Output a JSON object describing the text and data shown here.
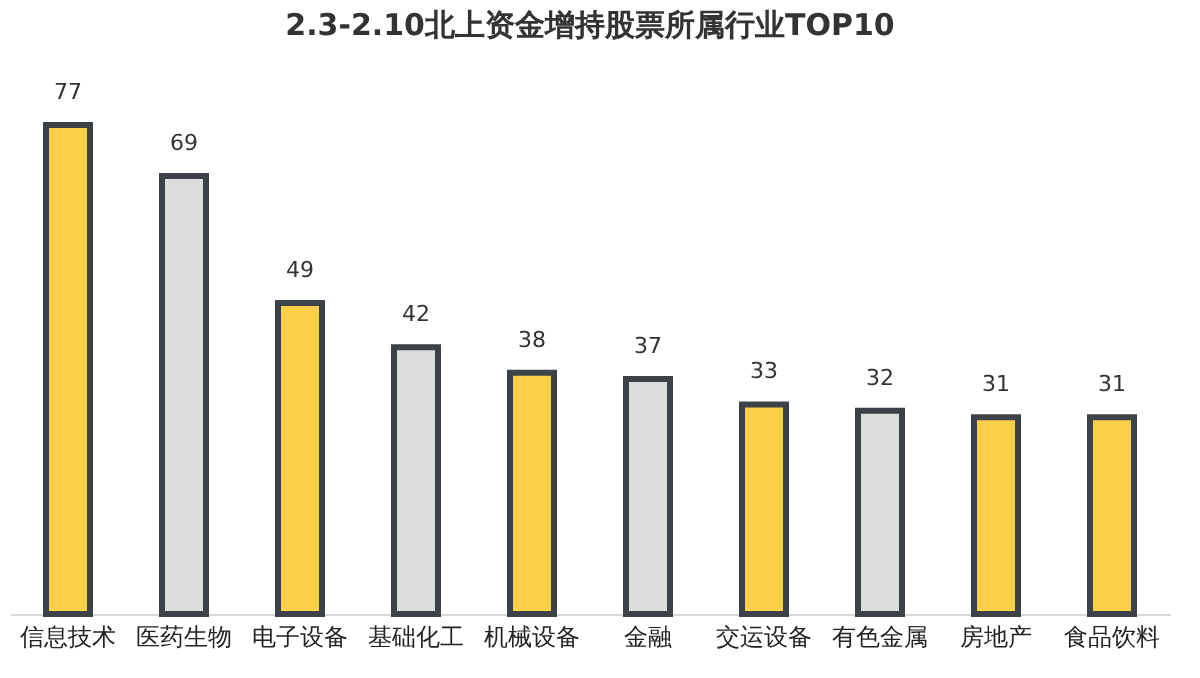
{
  "chart_data": {
    "type": "bar",
    "title": "2.3-2.10北上资金增持股票所属行业TOP10",
    "categories": [
      "信息技术",
      "医药生物",
      "电子设备",
      "基础化工",
      "机械设备",
      "金融",
      "交运设备",
      "有色金属",
      "房地产",
      "食品饮料"
    ],
    "values": [
      77,
      69,
      49,
      42,
      38,
      37,
      33,
      32,
      31,
      31
    ],
    "colors": [
      "#fdd04a",
      "#dcdcdc",
      "#fdd04a",
      "#dcdcdc",
      "#fdd04a",
      "#dcdcdc",
      "#fdd04a",
      "#dcdcdc",
      "#fdd04a",
      "#fdd04a"
    ],
    "data_labels": true,
    "grid": false
  }
}
